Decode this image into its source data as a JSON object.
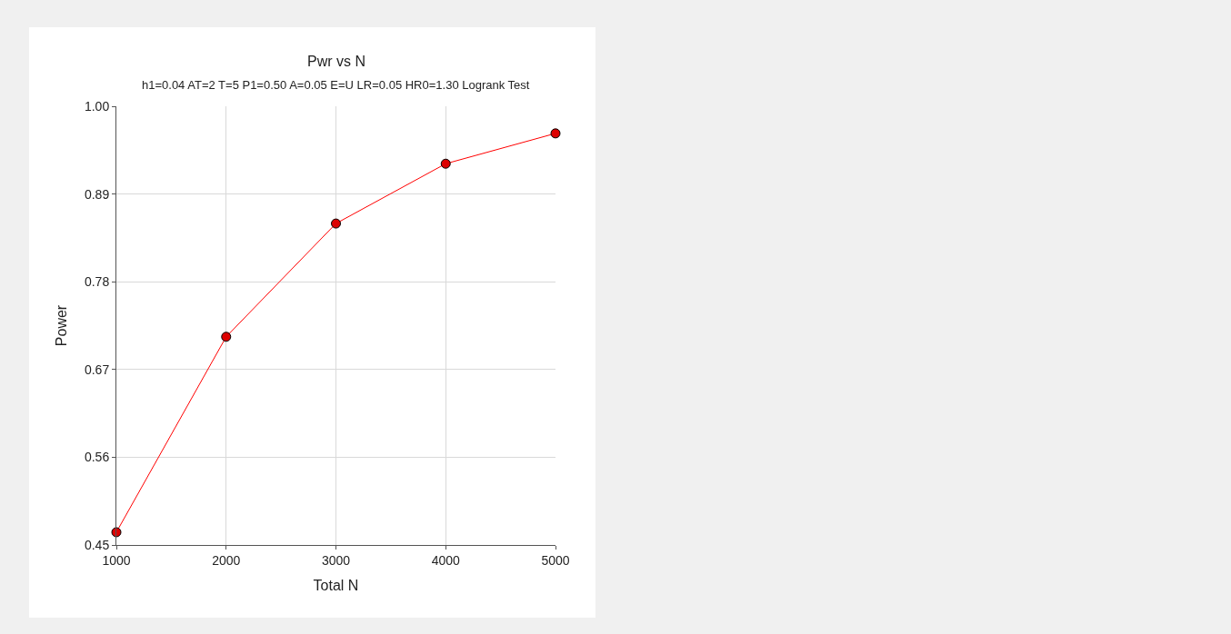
{
  "chart_data": {
    "type": "line",
    "title": "Pwr vs N",
    "subtitle": "h1=0.04 AT=2 T=5 P1=0.50 A=0.05 E=U LR=0.05 HR0=1.30 Logrank Test",
    "xlabel": "Total N",
    "ylabel": "Power",
    "x": [
      1000,
      2000,
      3000,
      4000,
      5000
    ],
    "series": [
      {
        "color": "#ff0000",
        "values": [
          0.466,
          0.711,
          0.853,
          0.928,
          0.966
        ]
      }
    ],
    "xlim": [
      1000,
      5000
    ],
    "xticks": [
      1000,
      2000,
      3000,
      4000,
      5000
    ],
    "ylim": [
      0.45,
      1.0
    ],
    "yticks": [
      {
        "value": 0.45,
        "label": "0.45"
      },
      {
        "value": 0.56,
        "label": "0.56"
      },
      {
        "value": 0.67,
        "label": "0.67"
      },
      {
        "value": 0.78,
        "label": "0.78"
      },
      {
        "value": 0.89,
        "label": "0.89"
      },
      {
        "value": 1.0,
        "label": "1.00"
      }
    ],
    "grid": true,
    "marker": "circle",
    "line_style": "solid"
  }
}
